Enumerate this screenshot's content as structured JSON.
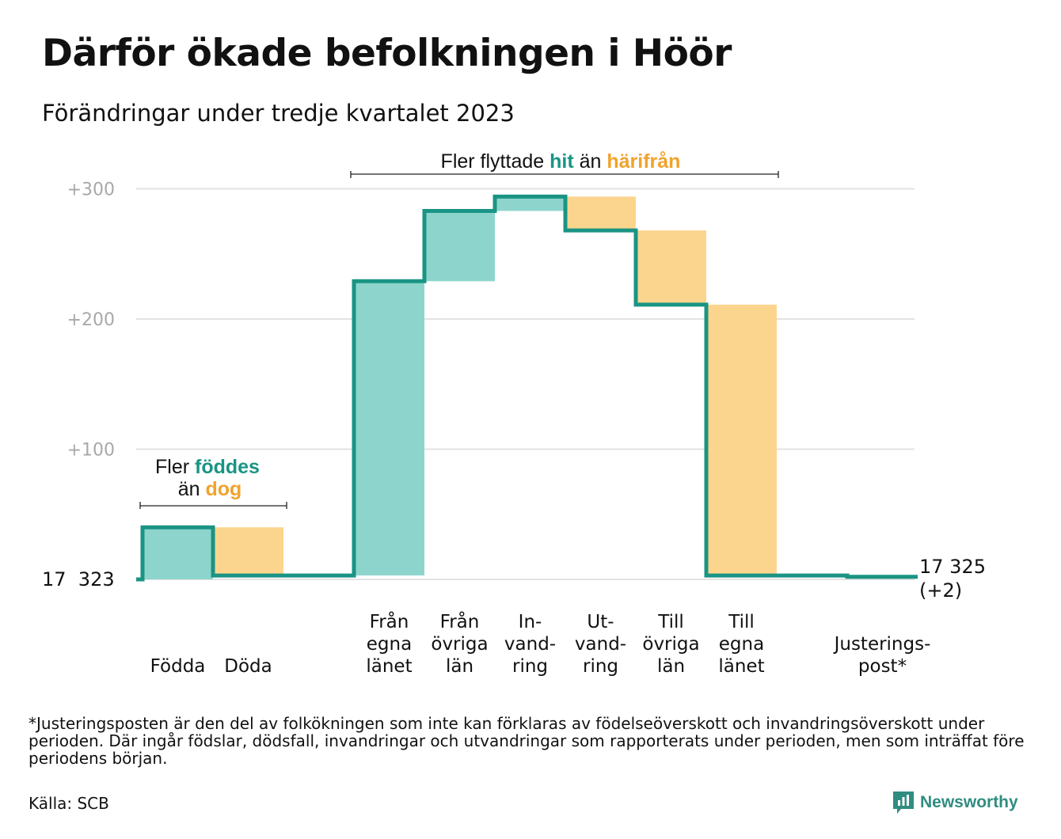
{
  "title": "Därför ökade befolkningen i Höör",
  "subtitle": "Förändringar under tredje kvartalet 2023",
  "colors": {
    "increase": "#8dd5cc",
    "decrease": "#fbd58e",
    "line": "#1a9484",
    "accent_hit": "#1a9484",
    "accent_harifran": "#f1a32c",
    "grid": "#e3e3e3",
    "tick": "#a8a8a8"
  },
  "chart_data": {
    "type": "waterfall",
    "start_label": "17  323",
    "end_label_line1": "17 325",
    "end_label_line2": "(+2)",
    "y_ticks": [
      {
        "value": 300,
        "label": "+300"
      },
      {
        "value": 200,
        "label": "+200"
      },
      {
        "value": 100,
        "label": "+100"
      }
    ],
    "ylim": [
      0,
      300
    ],
    "steps": [
      {
        "key": "fodda",
        "label_lines": [
          "Födda"
        ],
        "change": 40
      },
      {
        "key": "doda",
        "label_lines": [
          "Döda"
        ],
        "change": -37
      },
      {
        "key": "gap",
        "label_lines": [],
        "change": 0
      },
      {
        "key": "fran-egna-lanet",
        "label_lines": [
          "Från",
          "egna",
          "länet"
        ],
        "change": 226
      },
      {
        "key": "fran-ovriga-lan",
        "label_lines": [
          "Från",
          "övriga",
          "län"
        ],
        "change": 54
      },
      {
        "key": "invandring",
        "label_lines": [
          "In-",
          "vand-",
          "ring"
        ],
        "change": 11
      },
      {
        "key": "utvandring",
        "label_lines": [
          "Ut-",
          "vand-",
          "ring"
        ],
        "change": -26
      },
      {
        "key": "till-ovriga-lan",
        "label_lines": [
          "Till",
          "övriga",
          "län"
        ],
        "change": -57
      },
      {
        "key": "till-egna-lanet",
        "label_lines": [
          "Till",
          "egna",
          "länet"
        ],
        "change": -208
      },
      {
        "key": "gap2",
        "label_lines": [],
        "change": 0
      },
      {
        "key": "justeringspost",
        "label_lines": [
          "Justerings-",
          "post*"
        ],
        "change": -1
      }
    ],
    "annotations": {
      "born": {
        "line1": "Fler ",
        "line1_highlight": "föddes",
        "line2": "än ",
        "line2_highlight": "dog"
      },
      "moved": {
        "text1": "Fler flyttade ",
        "highlight1": "hit",
        "text2": " än ",
        "highlight2": "härifrån"
      }
    }
  },
  "footnote": "*Justeringsposten är den del av folkökningen som inte kan förklaras av födelseöverskott och invandringsöverskott under perioden. Där ingår födslar, dödsfall, invandringar och utvandringar som rapporterats under perioden, men som inträffat före periodens början.",
  "source": "Källa: SCB",
  "brand": "Newsworthy"
}
